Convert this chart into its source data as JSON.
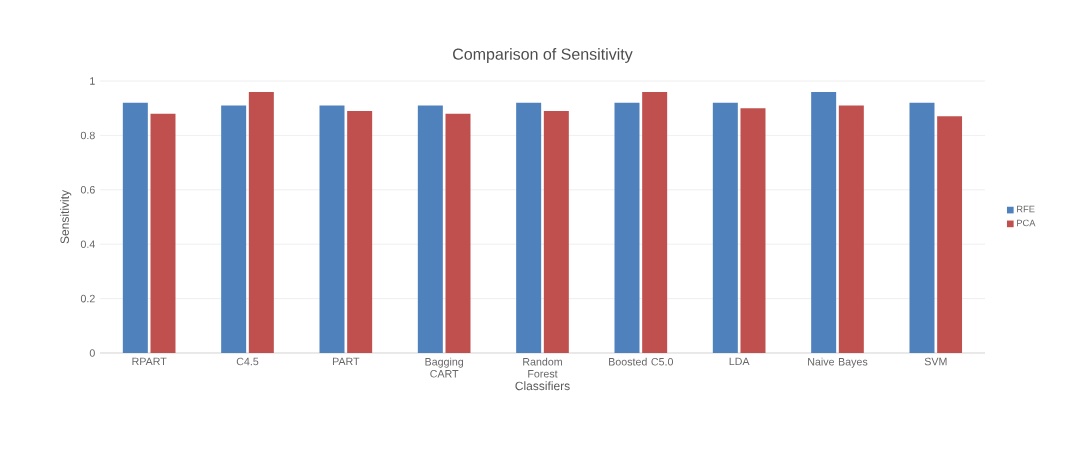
{
  "chart_data": {
    "type": "bar",
    "title": "Comparison of Sensitivity",
    "xlabel": "Classifiers",
    "ylabel": "Sensitivity",
    "categories": [
      "RPART",
      "C4.5",
      "PART",
      "Bagging CART",
      "Random Forest",
      "Boosted C5.0",
      "LDA",
      "Naive Bayes",
      "SVM"
    ],
    "series": [
      {
        "name": "RFE",
        "color": "#4f81bd",
        "values": [
          0.92,
          0.91,
          0.91,
          0.91,
          0.92,
          0.92,
          0.92,
          0.96,
          0.92
        ]
      },
      {
        "name": "PCA",
        "color": "#c0504d",
        "values": [
          0.88,
          0.96,
          0.89,
          0.88,
          0.89,
          0.96,
          0.9,
          0.91,
          0.87
        ]
      }
    ],
    "ylim": [
      0,
      1
    ],
    "yticks": [
      0,
      0.2,
      0.4,
      0.6,
      0.8,
      1
    ],
    "grid": "y",
    "legend": "right"
  }
}
